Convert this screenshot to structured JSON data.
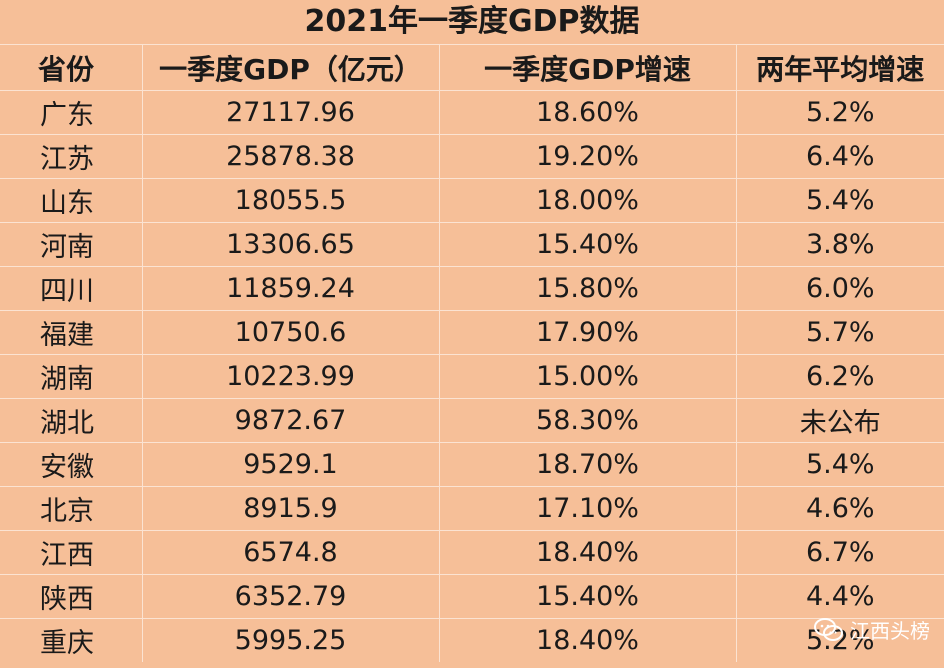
{
  "title": "2021年一季度GDP数据",
  "table": {
    "headers": [
      "省份",
      "一季度GDP（亿元）",
      "一季度GDP增速",
      "两年平均增速"
    ],
    "rows": [
      [
        "广东",
        "27117.96",
        "18.60%",
        "5.2%"
      ],
      [
        "江苏",
        "25878.38",
        "19.20%",
        "6.4%"
      ],
      [
        "山东",
        "18055.5",
        "18.00%",
        "5.4%"
      ],
      [
        "河南",
        "13306.65",
        "15.40%",
        "3.8%"
      ],
      [
        "四川",
        "11859.24",
        "15.80%",
        "6.0%"
      ],
      [
        "福建",
        "10750.6",
        "17.90%",
        "5.7%"
      ],
      [
        "湖南",
        "10223.99",
        "15.00%",
        "6.2%"
      ],
      [
        "湖北",
        "9872.67",
        "58.30%",
        "未公布"
      ],
      [
        "安徽",
        "9529.1",
        "18.70%",
        "5.4%"
      ],
      [
        "北京",
        "8915.9",
        "17.10%",
        "4.6%"
      ],
      [
        "江西",
        "6574.8",
        "18.40%",
        "6.7%"
      ],
      [
        "陕西",
        "6352.79",
        "15.40%",
        "4.4%"
      ],
      [
        "重庆",
        "5995.25",
        "18.40%",
        "5.2%"
      ]
    ]
  },
  "watermark": {
    "text": "江西头榜",
    "icon": "wechat-icon",
    "color": "#ffffff"
  },
  "colors": {
    "background": "#f6bf98",
    "grid_line": "#fbe3d2",
    "text": "#1a1a1a"
  }
}
